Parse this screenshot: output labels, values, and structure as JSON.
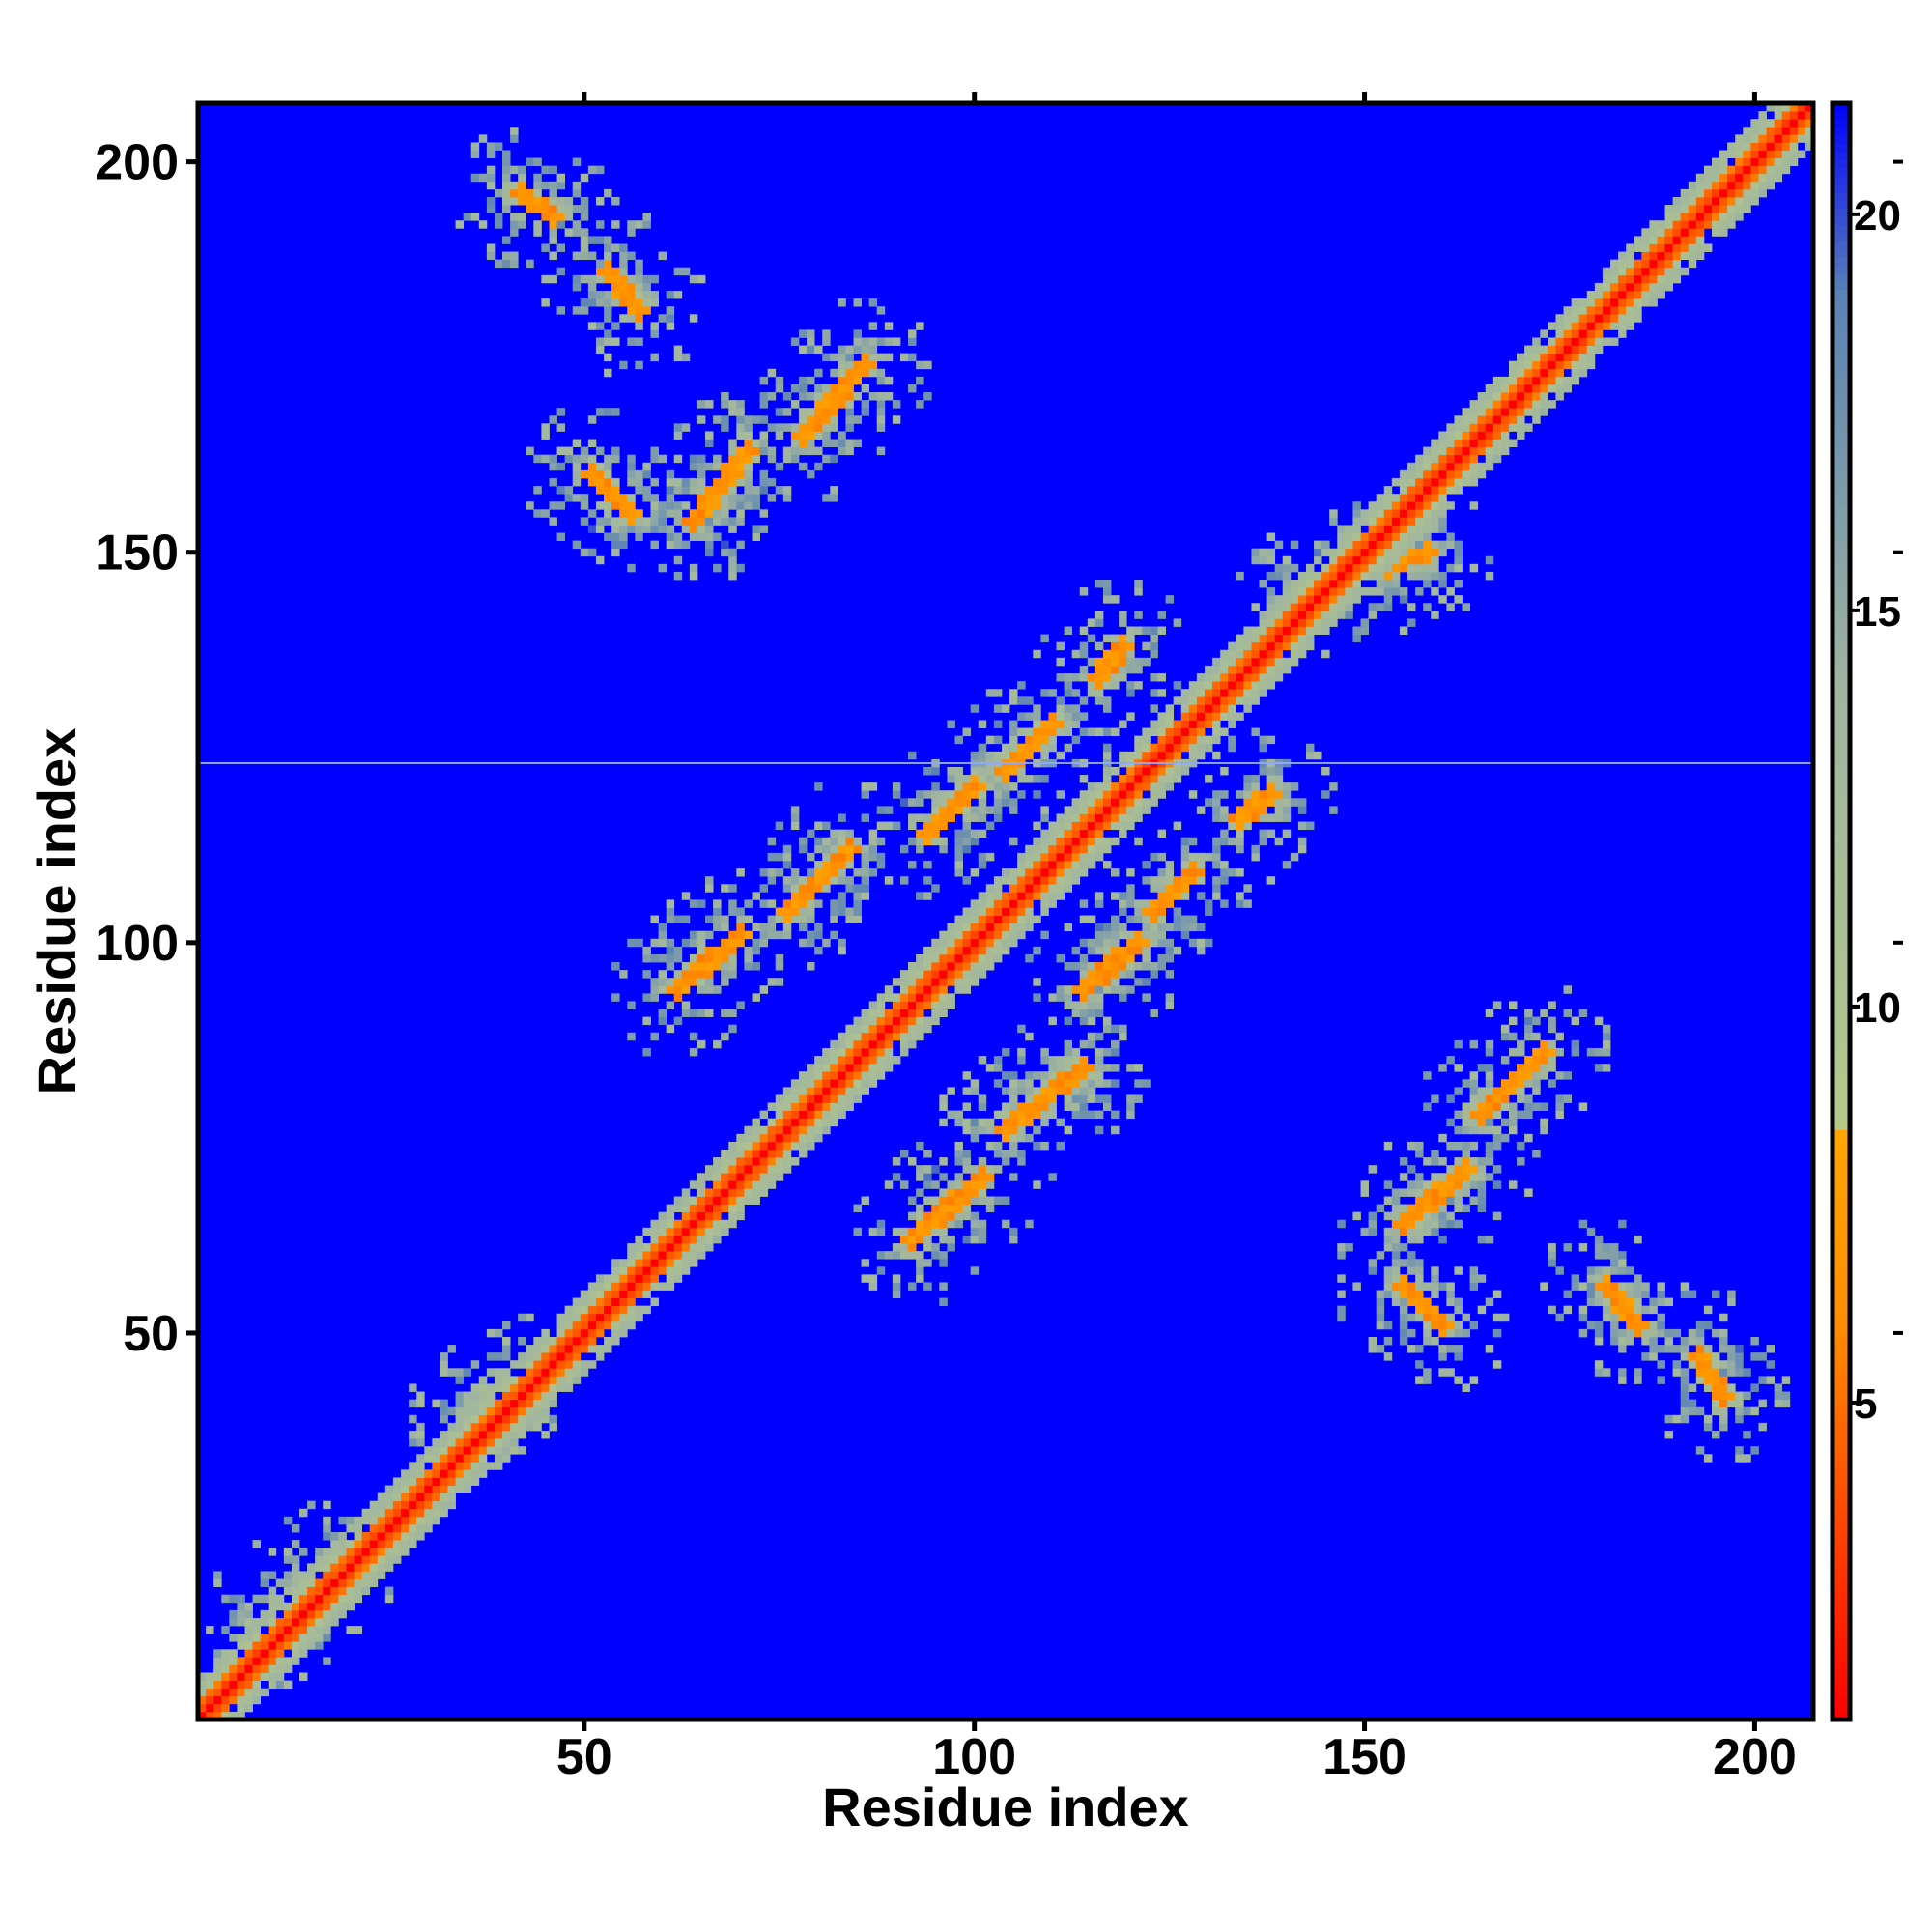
{
  "chart_data": {
    "type": "heatmap",
    "title": "",
    "xlabel": "Residue index",
    "ylabel": "Residue index",
    "xlim": [
      1,
      207
    ],
    "ylim": [
      1,
      207
    ],
    "x_ticks": [
      50,
      100,
      150,
      200
    ],
    "y_ticks": [
      50,
      100,
      150,
      200
    ],
    "x_tick_labels": [
      "50",
      "100",
      "150",
      "200"
    ],
    "y_tick_labels": [
      "50",
      "100",
      "150",
      "200"
    ],
    "colorbar": {
      "range": [
        1,
        21.4
      ],
      "ticks": [
        5,
        10,
        15,
        20
      ],
      "tick_labels": [
        "5",
        "10",
        "15",
        "20"
      ],
      "colors": [
        {
          "value": 1,
          "color": "#ff0000"
        },
        {
          "value": 6,
          "color": "#ff8c00"
        },
        {
          "value": 8.4,
          "color": "#ffa500"
        },
        {
          "value": 8.5,
          "color": "#b4c88c"
        },
        {
          "value": 14,
          "color": "#a0b4a0"
        },
        {
          "value": 19,
          "color": "#5a82b4"
        },
        {
          "value": 21.4,
          "color": "#0000ff"
        }
      ]
    },
    "background_value": 21.4,
    "diagonal_value": 1,
    "anomalous_row": {
      "residue": 123,
      "color": "#8fa8ff"
    },
    "contact_segments": [
      {
        "x1": 62,
        "y1": 94,
        "x2": 70,
        "y2": 101,
        "value": 6.5
      },
      {
        "x1": 76,
        "y1": 104,
        "x2": 84,
        "y2": 112,
        "value": 6.5
      },
      {
        "x1": 94,
        "y1": 114,
        "x2": 100,
        "y2": 120,
        "value": 6.5
      },
      {
        "x1": 104,
        "y1": 122,
        "x2": 110,
        "y2": 128,
        "value": 6.5
      },
      {
        "x1": 64,
        "y1": 154,
        "x2": 71,
        "y2": 163,
        "value": 6.5
      },
      {
        "x1": 78,
        "y1": 165,
        "x2": 86,
        "y2": 174,
        "value": 6.5
      },
      {
        "x1": 51,
        "y1": 160,
        "x2": 56,
        "y2": 155,
        "value": 6.5
      },
      {
        "x1": 53,
        "y1": 186,
        "x2": 57,
        "y2": 181,
        "value": 6.5
      },
      {
        "x1": 42,
        "y1": 196,
        "x2": 46,
        "y2": 193,
        "value": 6.5
      },
      {
        "x1": 92,
        "y1": 62,
        "x2": 101,
        "y2": 70,
        "value": 6.5
      },
      {
        "x1": 104,
        "y1": 76,
        "x2": 114,
        "y2": 84,
        "value": 6.5
      },
      {
        "x1": 114,
        "y1": 94,
        "x2": 121,
        "y2": 100,
        "value": 6.5
      },
      {
        "x1": 123,
        "y1": 104,
        "x2": 128,
        "y2": 109,
        "value": 6.5
      },
      {
        "x1": 155,
        "y1": 64,
        "x2": 163,
        "y2": 71,
        "value": 6.5
      },
      {
        "x1": 165,
        "y1": 78,
        "x2": 173,
        "y2": 86,
        "value": 6.5
      },
      {
        "x1": 155,
        "y1": 56,
        "x2": 160,
        "y2": 51,
        "value": 6.5
      },
      {
        "x1": 181,
        "y1": 56,
        "x2": 185,
        "y2": 51,
        "value": 6.5
      },
      {
        "x1": 193,
        "y1": 47,
        "x2": 196,
        "y2": 42,
        "value": 6.5
      },
      {
        "x1": 141,
        "y1": 144,
        "x2": 158,
        "y2": 150,
        "value": 6.5
      },
      {
        "x1": 116,
        "y1": 134,
        "x2": 119,
        "y2": 138,
        "value": 6.5
      },
      {
        "x1": 134,
        "y1": 116,
        "x2": 138,
        "y2": 119,
        "value": 6.5
      },
      {
        "x1": 8,
        "y1": 12,
        "x2": 18,
        "y2": 20,
        "value": 6.5
      },
      {
        "x1": 36,
        "y1": 40,
        "x2": 40,
        "y2": 44,
        "value": 6.5
      }
    ]
  }
}
